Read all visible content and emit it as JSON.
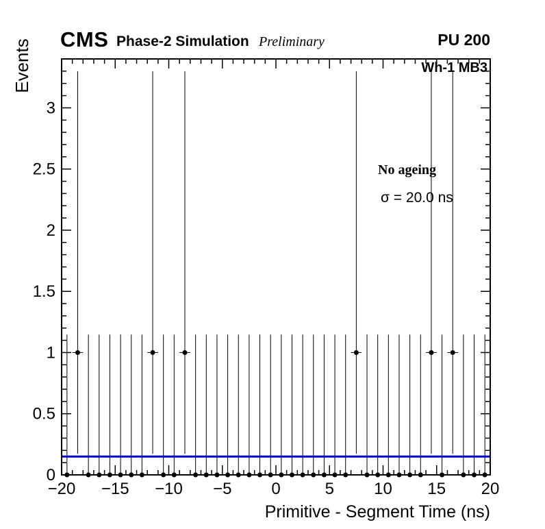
{
  "header": {
    "cms": "CMS",
    "subtitle": "Phase-2 Simulation",
    "preliminary": "Preliminary",
    "pu": "PU 200"
  },
  "annotations": {
    "chamber": "Wh-1 MB3",
    "ageing": "No ageing",
    "sigma": "σ = 20.0 ns"
  },
  "chart_data": {
    "type": "scatter",
    "title": "",
    "xlabel": "Primitive - Segment Time (ns)",
    "ylabel": "Events",
    "xlim": [
      -20,
      20
    ],
    "ylim": [
      0,
      3.4
    ],
    "grid": false,
    "legend_position": "none",
    "x_major_ticks": [
      -20,
      -15,
      -10,
      -5,
      0,
      5,
      10,
      15,
      20
    ],
    "x_tick_labels": [
      "−20",
      "−15",
      "−10",
      "−5",
      "0",
      "5",
      "10",
      "15",
      "20"
    ],
    "x_minor_step": 1,
    "y_major_ticks": [
      0,
      0.5,
      1,
      1.5,
      2,
      2.5,
      3
    ],
    "y_tick_labels": [
      "0",
      "0.5",
      "1",
      "1.5",
      "2",
      "2.5",
      "3"
    ],
    "y_minor_step": 0.1,
    "bin_width": 1,
    "x": [
      -19.5,
      -18.5,
      -17.5,
      -16.5,
      -15.5,
      -14.5,
      -13.5,
      -12.5,
      -11.5,
      -10.5,
      -9.5,
      -8.5,
      -7.5,
      -6.5,
      -5.5,
      -4.5,
      -3.5,
      -2.5,
      -1.5,
      -0.5,
      0.5,
      1.5,
      2.5,
      3.5,
      4.5,
      5.5,
      6.5,
      7.5,
      8.5,
      9.5,
      10.5,
      11.5,
      12.5,
      13.5,
      14.5,
      15.5,
      16.5,
      17.5,
      18.5,
      19.5
    ],
    "y": [
      0,
      1,
      0,
      0,
      0,
      0,
      0,
      0,
      1,
      0,
      0,
      1,
      0,
      0,
      0,
      0,
      0,
      0,
      0,
      0,
      0,
      0,
      0,
      0,
      0,
      0,
      0,
      1,
      0,
      0,
      0,
      0,
      0,
      0,
      1,
      0,
      1,
      0,
      0,
      0
    ],
    "errors": {
      "ex": 0.5,
      "zero_up": 1.147,
      "one_up": 2.299,
      "one_down": 0.827
    },
    "fit_line": {
      "y": 0.15,
      "color": "#0000cc",
      "width": 3
    },
    "marker": {
      "color": "#000000",
      "radius": 3.5
    }
  }
}
